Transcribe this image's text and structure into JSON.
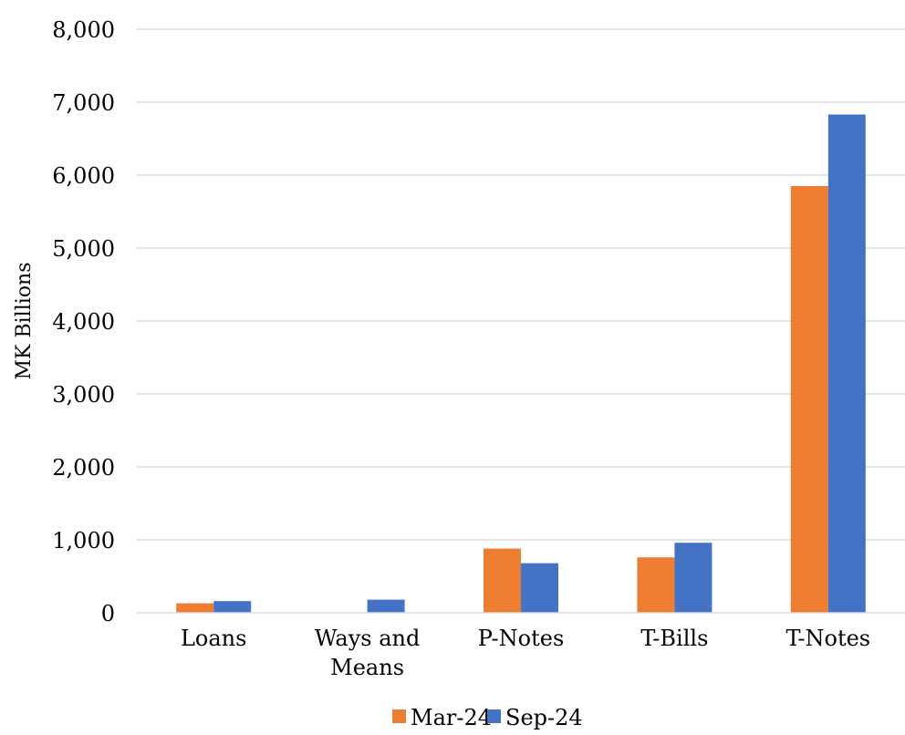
{
  "chart_data": {
    "type": "bar",
    "title": "",
    "xlabel": "",
    "ylabel": "MK Billions",
    "ylim": [
      0,
      8000
    ],
    "yticks": [
      0,
      1000,
      2000,
      3000,
      4000,
      5000,
      6000,
      7000,
      8000
    ],
    "ytick_labels": [
      "0",
      "1,000",
      "2,000",
      "3,000",
      "4,000",
      "5,000",
      "6,000",
      "7,000",
      "8,000"
    ],
    "categories": [
      "Loans",
      "Ways and Means",
      "P-Notes",
      "T-Bills",
      "T-Notes"
    ],
    "category_lines": [
      [
        "Loans"
      ],
      [
        "Ways and",
        "Means"
      ],
      [
        "P-Notes"
      ],
      [
        "T-Bills"
      ],
      [
        "T-Notes"
      ]
    ],
    "series": [
      {
        "name": "Mar-24",
        "color": "#ED7D31",
        "values": [
          130,
          0,
          880,
          760,
          5850
        ]
      },
      {
        "name": "Sep-24",
        "color": "#4472C4",
        "values": [
          160,
          180,
          680,
          960,
          6830
        ]
      }
    ],
    "grid": true,
    "legend_position": "bottom-center"
  }
}
